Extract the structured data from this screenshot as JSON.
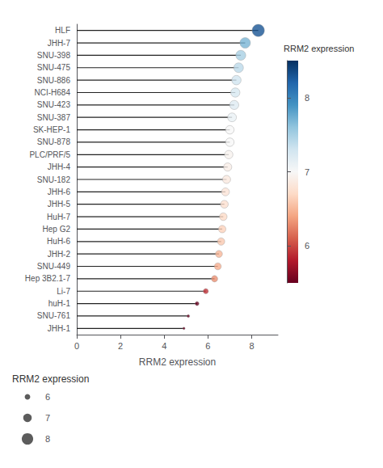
{
  "chart_data": {
    "type": "lollipop",
    "xlabel": "RRM2 expression",
    "categories": [
      "HLF",
      "JHH-7",
      "SNU-398",
      "SNU-475",
      "SNU-886",
      "NCI-H684",
      "SNU-423",
      "SNU-387",
      "SK-HEP-1",
      "SNU-878",
      "PLC/PRF/5",
      "JHH-4",
      "SNU-182",
      "JHH-6",
      "JHH-5",
      "HuH-7",
      "Hep G2",
      "HuH-6",
      "JHH-2",
      "SNU-449",
      "Hep 3B2.1-7",
      "Li-7",
      "huH-1",
      "SNU-761",
      "JHH-1"
    ],
    "values": [
      8.3,
      7.7,
      7.5,
      7.4,
      7.3,
      7.25,
      7.2,
      7.1,
      7.0,
      7.0,
      6.95,
      6.9,
      6.85,
      6.8,
      6.75,
      6.7,
      6.65,
      6.6,
      6.5,
      6.45,
      6.3,
      5.9,
      5.5,
      5.1,
      4.9
    ],
    "xlim": [
      0,
      9.2
    ],
    "xticks": [
      0,
      2,
      4,
      6,
      8
    ],
    "grid": false,
    "colorbar": {
      "label": "RRM2 expression",
      "range": [
        5.5,
        8.5
      ],
      "ticks": [
        6,
        7,
        8
      ]
    },
    "size_legend": {
      "title": "RRM2 expression",
      "values": [
        6,
        7,
        8
      ],
      "range": [
        5.5,
        8.5
      ],
      "color": "#333333"
    }
  }
}
